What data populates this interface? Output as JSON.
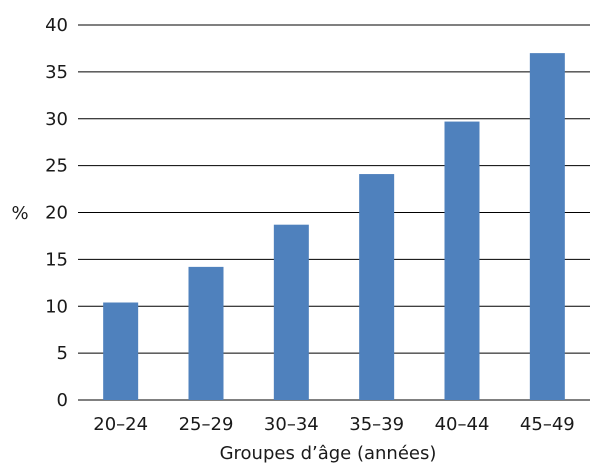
{
  "chart_data": {
    "type": "bar",
    "categories": [
      "20–24",
      "25–29",
      "30–34",
      "35–39",
      "40–44",
      "45–49"
    ],
    "values": [
      10.4,
      14.2,
      18.7,
      24.1,
      29.7,
      37.0
    ],
    "xlabel": "Groupes d’âge (années)",
    "ylabel": "%",
    "ylim": [
      0,
      40
    ],
    "yticks": [
      0,
      5,
      10,
      15,
      20,
      25,
      30,
      35,
      40
    ],
    "grid": true,
    "bar_color": "#4f81bd",
    "grid_color": "#000000"
  }
}
